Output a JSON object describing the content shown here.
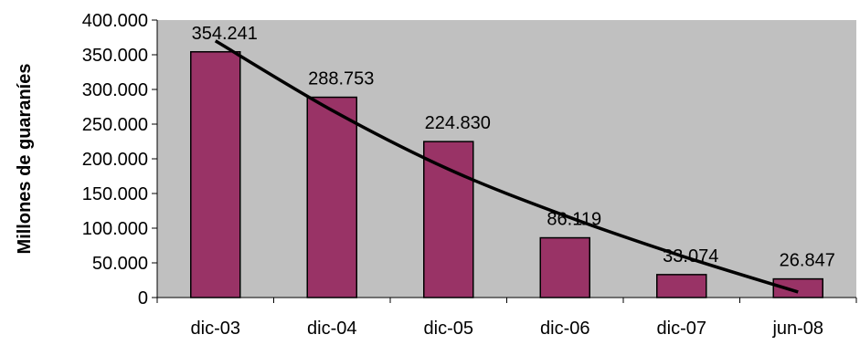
{
  "chart_data": {
    "type": "bar",
    "title": "",
    "xlabel": "",
    "ylabel": "Millones de guaraníes",
    "categories": [
      "dic-03",
      "dic-04",
      "dic-05",
      "dic-06",
      "dic-07",
      "jun-08"
    ],
    "values": [
      354241,
      288753,
      224830,
      86119,
      33074,
      26847
    ],
    "data_labels": [
      "354.241",
      "288.753",
      "224.830",
      "86.119",
      "33.074",
      "26.847"
    ],
    "ylim": [
      0,
      400000
    ],
    "yticks": [
      0,
      50000,
      100000,
      150000,
      200000,
      250000,
      300000,
      350000,
      400000
    ],
    "ytick_labels": [
      "0",
      "50.000",
      "100.000",
      "150.000",
      "200.000",
      "250.000",
      "300.000",
      "350.000",
      "400.000"
    ],
    "trendline": {
      "type": "polynomial",
      "points": [
        370000,
        270000,
        185000,
        118000,
        60000,
        8000
      ]
    },
    "grid": false,
    "legend": "none",
    "colors": {
      "bar_fill": "#993366",
      "bar_stroke": "#000000",
      "plot_background": "#c0c0c0",
      "trendline": "#000000"
    }
  }
}
